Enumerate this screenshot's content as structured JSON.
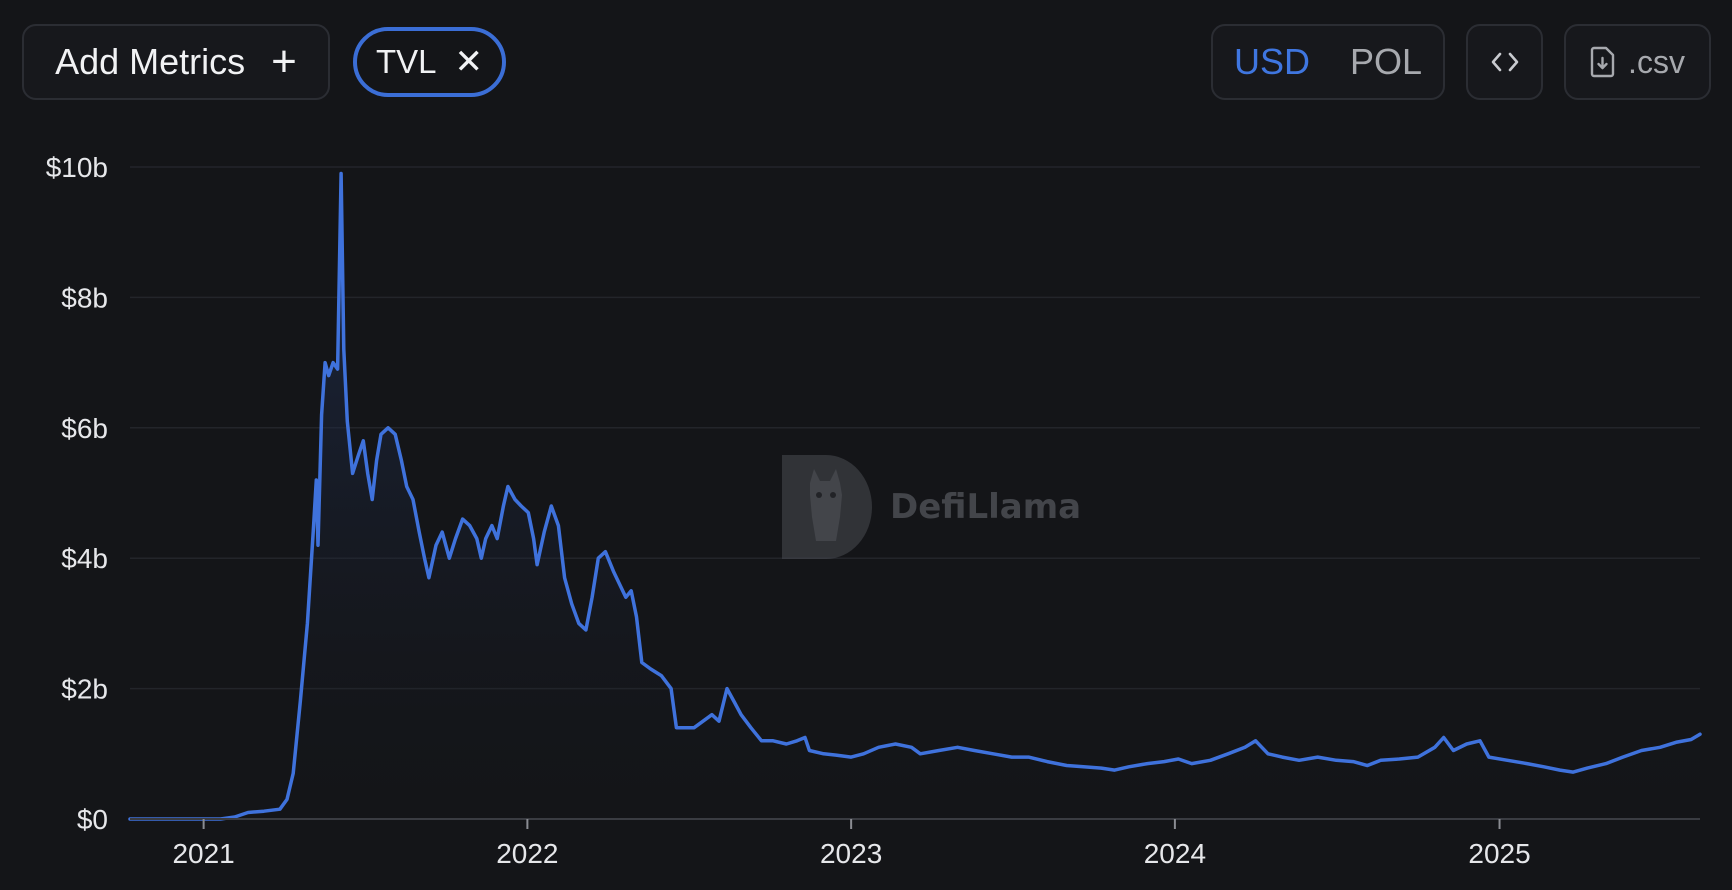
{
  "toolbar": {
    "add_metrics_label": "Add Metrics",
    "add_icon": "plus-icon",
    "metric_chip_label": "TVL",
    "remove_icon": "close-icon",
    "currency_options": [
      "USD",
      "POL"
    ],
    "currency_selected": "USD",
    "embed_icon": "code-icon",
    "csv_icon": "file-download-icon",
    "csv_label": ".csv"
  },
  "watermark": {
    "text": "DefiLlama",
    "icon": "llama-logo-icon"
  },
  "colors": {
    "background": "#141518",
    "line": "#3f72dc",
    "accent": "#3b6ed6",
    "grid": "#23252a",
    "text": "#e6e7ea"
  },
  "chart_data": {
    "type": "area",
    "title": "",
    "xlabel": "",
    "ylabel": "",
    "series": [
      {
        "values_unit": "USD billions",
        "points": [
          [
            "2020-10-10",
            0
          ],
          [
            "2020-12-01",
            0
          ],
          [
            "2021-01-20",
            0.0
          ],
          [
            "2021-02-05",
            0.03
          ],
          [
            "2021-02-20",
            0.1
          ],
          [
            "2021-03-10",
            0.12
          ],
          [
            "2021-03-28",
            0.15
          ],
          [
            "2021-04-05",
            0.3
          ],
          [
            "2021-04-12",
            0.7
          ],
          [
            "2021-04-20",
            1.8
          ],
          [
            "2021-04-28",
            3.0
          ],
          [
            "2021-05-05",
            4.5
          ],
          [
            "2021-05-08",
            5.2
          ],
          [
            "2021-05-10",
            4.2
          ],
          [
            "2021-05-14",
            6.2
          ],
          [
            "2021-05-18",
            7.0
          ],
          [
            "2021-05-22",
            6.8
          ],
          [
            "2021-05-27",
            7.0
          ],
          [
            "2021-06-01",
            6.9
          ],
          [
            "2021-06-05",
            9.9
          ],
          [
            "2021-06-08",
            7.2
          ],
          [
            "2021-06-12",
            6.1
          ],
          [
            "2021-06-18",
            5.3
          ],
          [
            "2021-06-25",
            5.6
          ],
          [
            "2021-06-30",
            5.8
          ],
          [
            "2021-07-05",
            5.3
          ],
          [
            "2021-07-10",
            4.9
          ],
          [
            "2021-07-15",
            5.5
          ],
          [
            "2021-07-20",
            5.9
          ],
          [
            "2021-07-28",
            6.0
          ],
          [
            "2021-08-05",
            5.9
          ],
          [
            "2021-08-12",
            5.5
          ],
          [
            "2021-08-18",
            5.1
          ],
          [
            "2021-08-25",
            4.9
          ],
          [
            "2021-09-01",
            4.4
          ],
          [
            "2021-09-07",
            4.0
          ],
          [
            "2021-09-12",
            3.7
          ],
          [
            "2021-09-20",
            4.2
          ],
          [
            "2021-09-27",
            4.4
          ],
          [
            "2021-10-05",
            4.0
          ],
          [
            "2021-10-12",
            4.3
          ],
          [
            "2021-10-20",
            4.6
          ],
          [
            "2021-10-28",
            4.5
          ],
          [
            "2021-11-05",
            4.3
          ],
          [
            "2021-11-10",
            4.0
          ],
          [
            "2021-11-15",
            4.3
          ],
          [
            "2021-11-22",
            4.5
          ],
          [
            "2021-11-28",
            4.3
          ],
          [
            "2021-12-05",
            4.8
          ],
          [
            "2021-12-10",
            5.1
          ],
          [
            "2021-12-18",
            4.9
          ],
          [
            "2021-12-25",
            4.8
          ],
          [
            "2022-01-02",
            4.7
          ],
          [
            "2022-01-08",
            4.3
          ],
          [
            "2022-01-12",
            3.9
          ],
          [
            "2022-01-20",
            4.4
          ],
          [
            "2022-01-28",
            4.8
          ],
          [
            "2022-02-05",
            4.5
          ],
          [
            "2022-02-12",
            3.7
          ],
          [
            "2022-02-20",
            3.3
          ],
          [
            "2022-02-28",
            3.0
          ],
          [
            "2022-03-08",
            2.9
          ],
          [
            "2022-03-15",
            3.4
          ],
          [
            "2022-03-22",
            4.0
          ],
          [
            "2022-03-30",
            4.1
          ],
          [
            "2022-04-08",
            3.8
          ],
          [
            "2022-04-15",
            3.6
          ],
          [
            "2022-04-22",
            3.4
          ],
          [
            "2022-04-28",
            3.5
          ],
          [
            "2022-05-04",
            3.1
          ],
          [
            "2022-05-10",
            2.4
          ],
          [
            "2022-05-20",
            2.3
          ],
          [
            "2022-06-01",
            2.2
          ],
          [
            "2022-06-12",
            2.0
          ],
          [
            "2022-06-18",
            1.4
          ],
          [
            "2022-06-28",
            1.4
          ],
          [
            "2022-07-08",
            1.4
          ],
          [
            "2022-07-18",
            1.5
          ],
          [
            "2022-07-28",
            1.6
          ],
          [
            "2022-08-05",
            1.5
          ],
          [
            "2022-08-14",
            2.0
          ],
          [
            "2022-08-22",
            1.8
          ],
          [
            "2022-08-30",
            1.6
          ],
          [
            "2022-09-10",
            1.4
          ],
          [
            "2022-09-22",
            1.2
          ],
          [
            "2022-10-05",
            1.2
          ],
          [
            "2022-10-20",
            1.15
          ],
          [
            "2022-11-01",
            1.2
          ],
          [
            "2022-11-10",
            1.25
          ],
          [
            "2022-11-15",
            1.05
          ],
          [
            "2022-12-01",
            1.0
          ],
          [
            "2022-12-15",
            0.98
          ],
          [
            "2023-01-01",
            0.95
          ],
          [
            "2023-01-15",
            1.0
          ],
          [
            "2023-02-01",
            1.1
          ],
          [
            "2023-02-20",
            1.15
          ],
          [
            "2023-03-10",
            1.1
          ],
          [
            "2023-03-20",
            1.0
          ],
          [
            "2023-04-10",
            1.05
          ],
          [
            "2023-05-01",
            1.1
          ],
          [
            "2023-05-20",
            1.05
          ],
          [
            "2023-06-10",
            1.0
          ],
          [
            "2023-07-01",
            0.95
          ],
          [
            "2023-07-20",
            0.95
          ],
          [
            "2023-08-10",
            0.88
          ],
          [
            "2023-09-01",
            0.82
          ],
          [
            "2023-09-20",
            0.8
          ],
          [
            "2023-10-10",
            0.78
          ],
          [
            "2023-10-25",
            0.75
          ],
          [
            "2023-11-10",
            0.8
          ],
          [
            "2023-12-01",
            0.85
          ],
          [
            "2023-12-20",
            0.88
          ],
          [
            "2024-01-05",
            0.92
          ],
          [
            "2024-01-20",
            0.85
          ],
          [
            "2024-02-10",
            0.9
          ],
          [
            "2024-03-01",
            1.0
          ],
          [
            "2024-03-20",
            1.1
          ],
          [
            "2024-04-01",
            1.2
          ],
          [
            "2024-04-15",
            1.0
          ],
          [
            "2024-05-01",
            0.95
          ],
          [
            "2024-05-20",
            0.9
          ],
          [
            "2024-06-10",
            0.95
          ],
          [
            "2024-07-01",
            0.9
          ],
          [
            "2024-07-20",
            0.88
          ],
          [
            "2024-08-05",
            0.82
          ],
          [
            "2024-08-20",
            0.9
          ],
          [
            "2024-09-10",
            0.92
          ],
          [
            "2024-10-01",
            0.95
          ],
          [
            "2024-10-20",
            1.1
          ],
          [
            "2024-10-30",
            1.25
          ],
          [
            "2024-11-10",
            1.05
          ],
          [
            "2024-11-25",
            1.15
          ],
          [
            "2024-12-10",
            1.2
          ],
          [
            "2024-12-20",
            0.95
          ],
          [
            "2025-01-10",
            0.9
          ],
          [
            "2025-02-01",
            0.85
          ],
          [
            "2025-02-20",
            0.8
          ],
          [
            "2025-03-10",
            0.75
          ],
          [
            "2025-03-25",
            0.72
          ],
          [
            "2025-04-10",
            0.78
          ],
          [
            "2025-05-01",
            0.85
          ],
          [
            "2025-05-20",
            0.95
          ],
          [
            "2025-06-10",
            1.05
          ],
          [
            "2025-07-01",
            1.1
          ],
          [
            "2025-07-20",
            1.18
          ],
          [
            "2025-08-05",
            1.22
          ],
          [
            "2025-08-15",
            1.3
          ]
        ]
      }
    ],
    "y_ticks": [
      "$0",
      "$2b",
      "$4b",
      "$6b",
      "$8b",
      "$10b"
    ],
    "y_tick_values": [
      0,
      2,
      4,
      6,
      8,
      10
    ],
    "x_ticks": [
      "2021",
      "2022",
      "2023",
      "2024",
      "2025"
    ],
    "x_tick_dates": [
      "2021-01-01",
      "2022-01-01",
      "2023-01-01",
      "2024-01-01",
      "2025-01-01"
    ],
    "xlim": [
      "2020-10-10",
      "2025-08-15"
    ],
    "ylim": [
      0,
      10
    ],
    "grid": true,
    "legend": "none"
  }
}
